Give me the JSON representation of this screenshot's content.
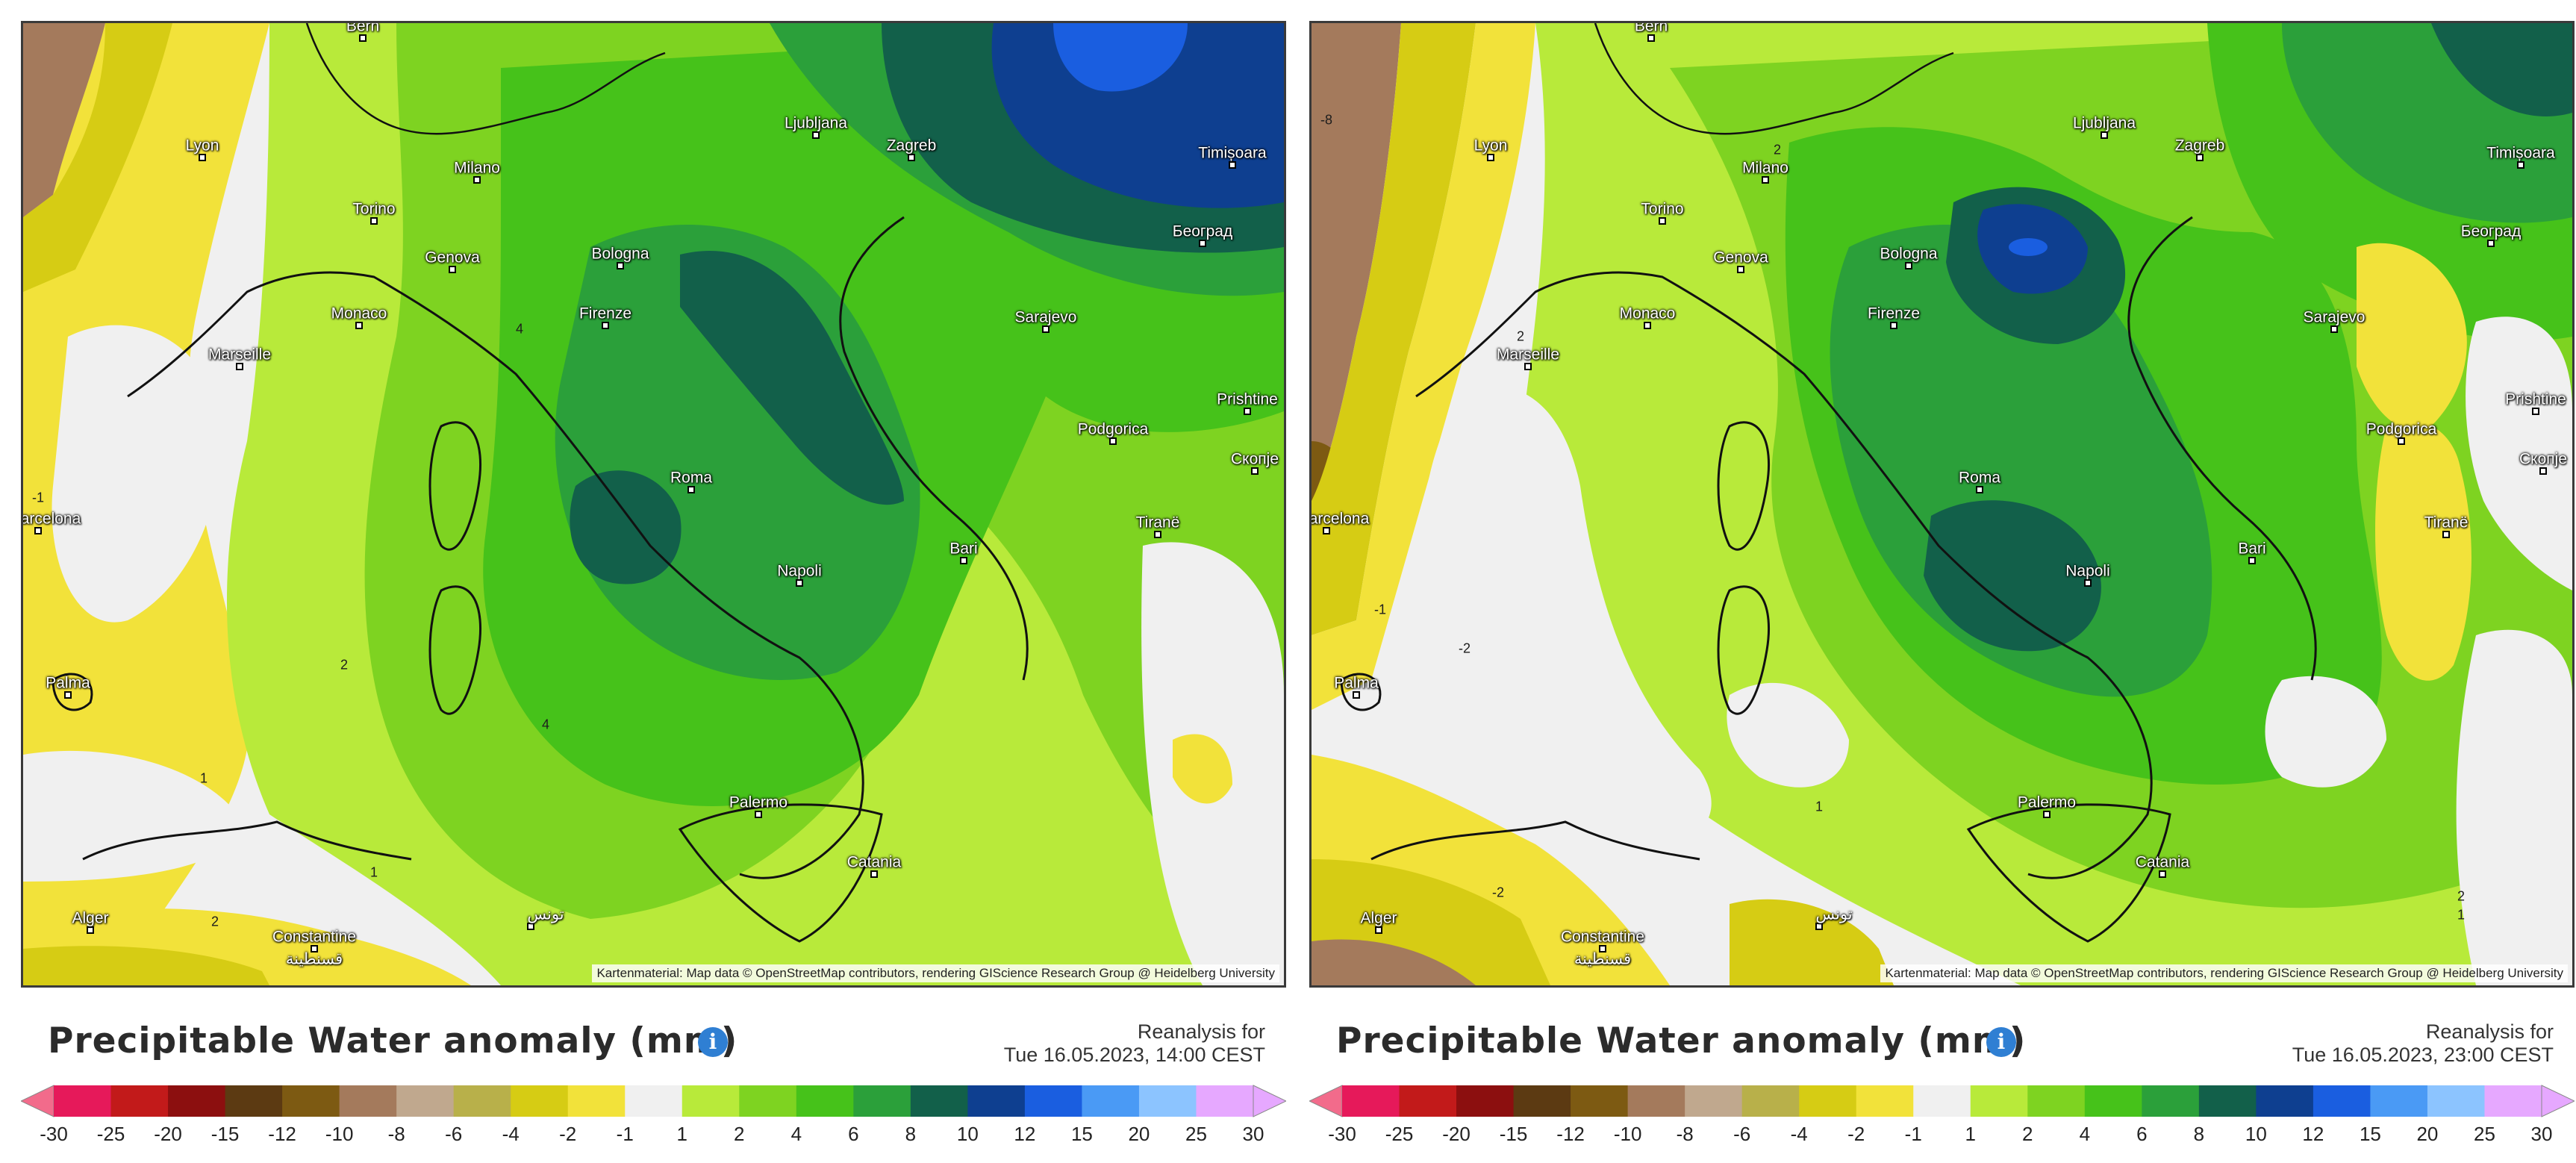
{
  "legend": {
    "title": "Precipitable Water anomaly (mm)",
    "ticks": [
      "-30",
      "-25",
      "-20",
      "-15",
      "-12",
      "-10",
      "-8",
      "-6",
      "-4",
      "-2",
      "-1",
      "1",
      "2",
      "4",
      "6",
      "8",
      "10",
      "12",
      "15",
      "20",
      "25",
      "30"
    ],
    "colors": [
      "#e6195a",
      "#c21a1a",
      "#8c0f0f",
      "#5c3a12",
      "#7d5a12",
      "#a47a5c",
      "#c0a88e",
      "#b8b04a",
      "#d6cc14",
      "#f2e23a",
      "#f0f0f0",
      "#b8ea3a",
      "#7ed321",
      "#46c21a",
      "#2ba03a",
      "#12604a",
      "#0e3f90",
      "#1a5ee0",
      "#4a9af5",
      "#8cc4ff",
      "#e6a8ff"
    ],
    "end_left": "#f26b8b",
    "end_right": "#e6a8ff"
  },
  "attribution": "Kartenmaterial: Map data © OpenStreetMap contributors, rendering GIScience Research Group @ Heidelberg University",
  "panels": [
    {
      "reanalysis_label": "Reanalysis for",
      "datetime": "Tue 16.05.2023, 14:00 CEST"
    },
    {
      "reanalysis_label": "Reanalysis for",
      "datetime": "Tue 16.05.2023, 23:00 CEST"
    }
  ],
  "cities": [
    {
      "name": "Bern"
    },
    {
      "name": "Lyon"
    },
    {
      "name": "Milano"
    },
    {
      "name": "Torino"
    },
    {
      "name": "Genova"
    },
    {
      "name": "Monaco"
    },
    {
      "name": "Marseille"
    },
    {
      "name": "Ljubljana"
    },
    {
      "name": "Zagreb"
    },
    {
      "name": "Timișoara"
    },
    {
      "name": "Bologna"
    },
    {
      "name": "Firenze"
    },
    {
      "name": "Београд"
    },
    {
      "name": "Sarajevo"
    },
    {
      "name": "Prishtine"
    },
    {
      "name": "Podgorica"
    },
    {
      "name": "Скопје"
    },
    {
      "name": "Roma"
    },
    {
      "name": "Tiranë"
    },
    {
      "name": "Bari"
    },
    {
      "name": "Napoli"
    },
    {
      "name": "Barcelona"
    },
    {
      "name": "Palma"
    },
    {
      "name": "Palermo"
    },
    {
      "name": "Catania"
    },
    {
      "name": "Alger"
    },
    {
      "name": "Constantine"
    },
    {
      "name": "قسنطينة"
    },
    {
      "name": "تونس"
    }
  ]
}
